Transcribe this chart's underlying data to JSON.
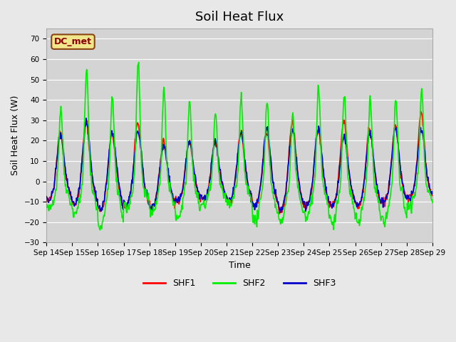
{
  "title": "Soil Heat Flux",
  "ylabel": "Soil Heat Flux (W)",
  "xlabel": "Time",
  "ylim": [
    -30,
    75
  ],
  "background_color": "#e8e8e8",
  "plot_bg_color": "#d4d4d4",
  "legend_label": "DC_met",
  "legend_bg": "#f0e68c",
  "legend_border": "#8b4513",
  "series": [
    "SHF1",
    "SHF2",
    "SHF3"
  ],
  "colors": [
    "#ff0000",
    "#00ee00",
    "#0000cc"
  ],
  "linewidth": 1.2,
  "yticks": [
    -30,
    -20,
    -10,
    0,
    10,
    20,
    30,
    40,
    50,
    60,
    70
  ],
  "xtick_labels": [
    "Sep 14",
    "Sep 15",
    "Sep 16",
    "Sep 17",
    "Sep 18",
    "Sep 19",
    "Sep 20",
    "Sep 21",
    "Sep 22",
    "Sep 23",
    "Sep 24",
    "Sep 25",
    "Sep 26",
    "Sep 27",
    "Sep 28",
    "Sep 29"
  ],
  "title_fontsize": 13,
  "axis_label_fontsize": 9,
  "tick_fontsize": 7.5,
  "shf2_peaks": [
    37,
    57,
    42,
    60,
    45,
    41,
    33,
    42,
    41,
    34,
    47,
    44,
    41,
    41,
    46
  ],
  "shf1_peaks": [
    24,
    30,
    24,
    30,
    20,
    20,
    20,
    24,
    24,
    30,
    26,
    30,
    27,
    28,
    34
  ],
  "shf3_peaks": [
    23,
    30,
    25,
    25,
    18,
    20,
    20,
    24,
    26,
    25,
    27,
    22,
    24,
    26,
    26
  ],
  "shf2_troughs": [
    14,
    16,
    23,
    13,
    16,
    18,
    12,
    12,
    20,
    20,
    18,
    20,
    20,
    20,
    12
  ],
  "shf1_troughs": [
    9,
    11,
    14,
    12,
    13,
    10,
    9,
    10,
    12,
    14,
    13,
    12,
    12,
    10,
    8
  ],
  "shf3_troughs": [
    9,
    11,
    14,
    11,
    13,
    10,
    9,
    10,
    12,
    14,
    12,
    12,
    12,
    10,
    8
  ]
}
